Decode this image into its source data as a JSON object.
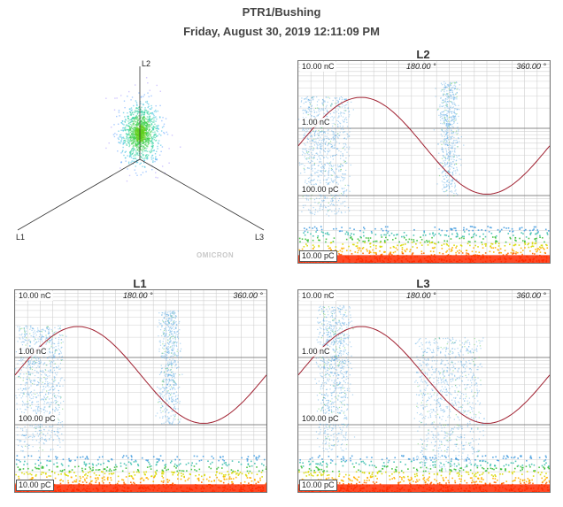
{
  "header": {
    "title": "PTR1/Bushing",
    "datetime": "Friday, August 30, 2019 12:11:09 PM"
  },
  "triaxial": {
    "axis_labels": {
      "l1": "L1",
      "l2": "L2",
      "l3": "L3"
    },
    "logo": "OMICRON"
  },
  "colors": {
    "grid_major": "#888888",
    "grid_minor": "#d0d0d0",
    "sine": "#a02030",
    "low_pd": "#4aa0e0",
    "mid_pd": "#3bbf3b",
    "high_pd": "#ff2a00"
  },
  "chart_data": [
    {
      "type": "scatter",
      "name": "L2",
      "title": "L2",
      "x_unit": "°",
      "xlim": [
        0,
        360
      ],
      "x_ticks": [
        "180.00 °",
        "360.00 °"
      ],
      "y_scale": "log",
      "ylim_labels": [
        "10.00 pC",
        "10.00 nC"
      ],
      "y_ticks": [
        "10.00 nC",
        "1.00 nC",
        "100.00 pC",
        "10.00 pC"
      ],
      "clusters": [
        {
          "phase_deg": [
            5,
            70
          ],
          "charge_pc_range": [
            50,
            3000
          ],
          "density": "high"
        },
        {
          "phase_deg": [
            205,
            225
          ],
          "charge_pc_range": [
            100,
            5000
          ],
          "density": "medium"
        }
      ],
      "noise_floor_pc": [
        10,
        25
      ],
      "grid": true
    },
    {
      "type": "scatter",
      "name": "L1",
      "title": "L1",
      "x_unit": "°",
      "xlim": [
        0,
        360
      ],
      "x_ticks": [
        "180.00 °",
        "360.00 °"
      ],
      "y_scale": "log",
      "ylim_labels": [
        "10.00 pC",
        "10.00 nC"
      ],
      "y_ticks": [
        "10.00 nC",
        "1.00 nC",
        "100.00 pC",
        "10.00 pC"
      ],
      "clusters": [
        {
          "phase_deg": [
            5,
            65
          ],
          "charge_pc_range": [
            40,
            3000
          ],
          "density": "high"
        },
        {
          "phase_deg": [
            210,
            230
          ],
          "charge_pc_range": [
            100,
            5000
          ],
          "density": "medium"
        }
      ],
      "noise_floor_pc": [
        10,
        25
      ],
      "grid": true
    },
    {
      "type": "scatter",
      "name": "L3",
      "title": "L3",
      "x_unit": "°",
      "xlim": [
        0,
        360
      ],
      "x_ticks": [
        "180.00 °",
        "360.00 °"
      ],
      "y_scale": "log",
      "ylim_labels": [
        "10.00 pC",
        "10.00 nC"
      ],
      "y_ticks": [
        "10.00 nC",
        "1.00 nC",
        "100.00 pC",
        "10.00 pC"
      ],
      "clusters": [
        {
          "phase_deg": [
            30,
            70
          ],
          "charge_pc_range": [
            40,
            6000
          ],
          "density": "high"
        },
        {
          "phase_deg": [
            170,
            260
          ],
          "charge_pc_range": [
            20,
            2000
          ],
          "density": "high"
        }
      ],
      "noise_floor_pc": [
        10,
        30
      ],
      "grid": true
    }
  ]
}
